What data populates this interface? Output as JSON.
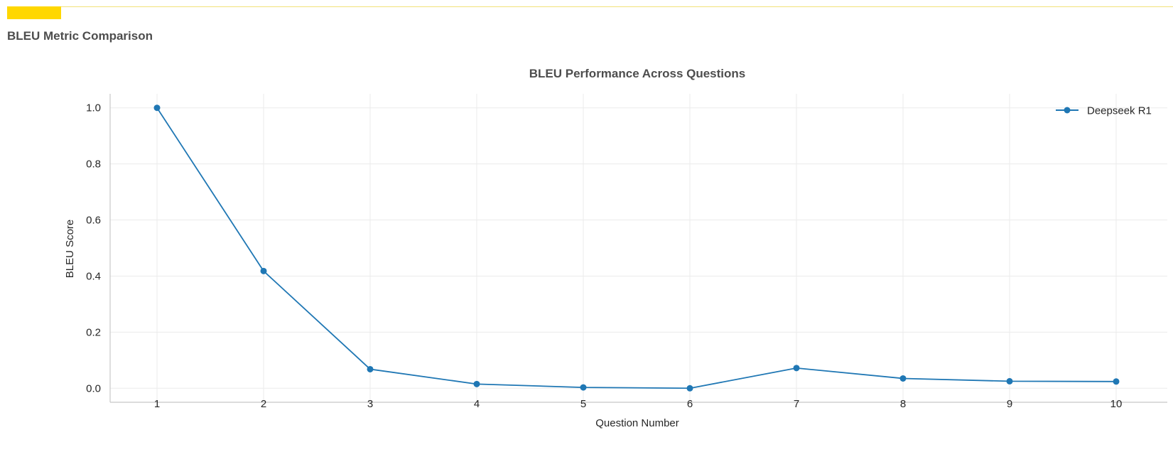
{
  "header": {
    "title": "BLEU Metric Comparison"
  },
  "chart_data": {
    "type": "line",
    "title": "BLEU Performance Across Questions",
    "xlabel": "Question Number",
    "ylabel": "BLEU Score",
    "x": [
      1,
      2,
      3,
      4,
      5,
      6,
      7,
      8,
      9,
      10
    ],
    "xticks": [
      "1",
      "2",
      "3",
      "4",
      "5",
      "6",
      "7",
      "8",
      "9",
      "10"
    ],
    "yticks": [
      "0.0",
      "0.2",
      "0.4",
      "0.6",
      "0.8",
      "1.0"
    ],
    "xlim": [
      0.56,
      10.48
    ],
    "ylim": [
      -0.05,
      1.05
    ],
    "grid": true,
    "legend_position": "top-right",
    "series": [
      {
        "name": "Deepseek R1",
        "color": "#1f77b4",
        "marker": "circle",
        "values": [
          1.0,
          0.418,
          0.068,
          0.015,
          0.003,
          0.0,
          0.072,
          0.035,
          0.025,
          0.024
        ]
      }
    ]
  },
  "colors": {
    "accent": "#FFD700",
    "series": "#1f77b4",
    "grid": "#e6e6e6",
    "axis": "#c8c8c8",
    "title_text": "#4d4d4d",
    "tick_text": "#262626"
  }
}
